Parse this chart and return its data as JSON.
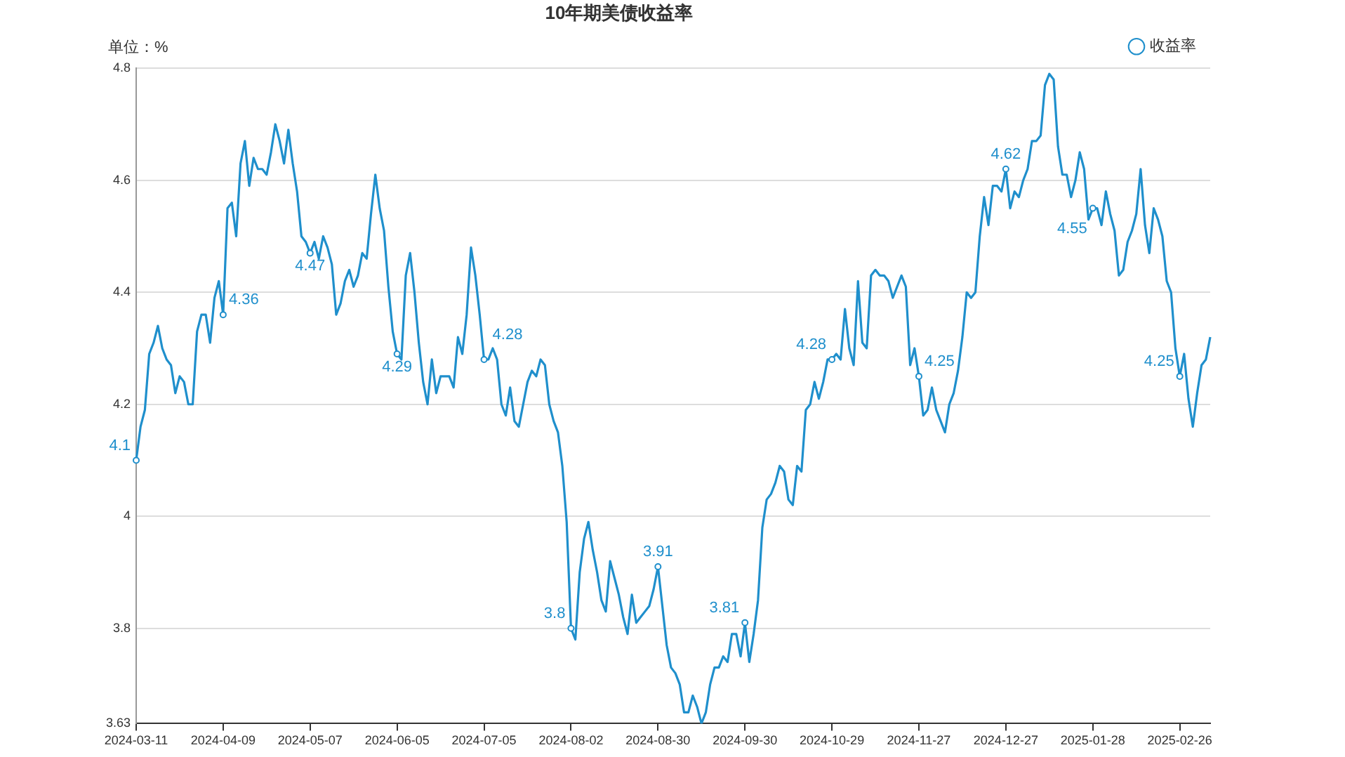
{
  "chart_data": {
    "type": "line",
    "title": "10年期美债收益率",
    "ylabel": "单位：%",
    "categories": [
      "2024-03-11",
      null,
      null,
      null,
      null,
      null,
      null,
      null,
      null,
      null,
      null,
      null,
      null,
      null,
      null,
      null,
      null,
      null,
      null,
      null,
      "2024-04-09",
      null,
      null,
      null,
      null,
      null,
      null,
      null,
      null,
      null,
      null,
      null,
      null,
      null,
      null,
      null,
      null,
      null,
      null,
      null,
      "2024-05-07",
      null,
      null,
      null,
      null,
      null,
      null,
      null,
      null,
      null,
      null,
      null,
      null,
      null,
      null,
      null,
      null,
      null,
      null,
      null,
      "2024-06-05",
      null,
      null,
      null,
      null,
      null,
      null,
      null,
      null,
      null,
      null,
      null,
      null,
      null,
      null,
      null,
      null,
      null,
      null,
      null,
      "2024-07-05",
      null,
      null,
      null,
      null,
      null,
      null,
      null,
      null,
      null,
      null,
      null,
      null,
      null,
      null,
      null,
      null,
      null,
      null,
      null,
      "2024-08-02",
      null,
      null,
      null,
      null,
      null,
      null,
      null,
      null,
      null,
      null,
      null,
      null,
      null,
      null,
      null,
      null,
      null,
      null,
      null,
      "2024-08-30",
      null,
      null,
      null,
      null,
      null,
      null,
      null,
      null,
      null,
      null,
      null,
      null,
      null,
      null,
      null,
      null,
      null,
      null,
      null,
      "2024-09-30",
      null,
      null,
      null,
      null,
      null,
      null,
      null,
      null,
      null,
      null,
      null,
      null,
      null,
      null,
      null,
      null,
      null,
      null,
      null,
      "2024-10-29",
      null,
      null,
      null,
      null,
      null,
      null,
      null,
      null,
      null,
      null,
      null,
      null,
      null,
      null,
      null,
      null,
      null,
      null,
      null,
      "2024-11-27",
      null,
      null,
      null,
      null,
      null,
      null,
      null,
      null,
      null,
      null,
      null,
      null,
      null,
      null,
      null,
      null,
      null,
      null,
      null,
      "2024-12-27",
      null,
      null,
      null,
      null,
      null,
      null,
      null,
      null,
      null,
      null,
      null,
      null,
      null,
      null,
      null,
      null,
      null,
      null,
      null,
      "2025-01-28",
      null,
      null,
      null,
      null,
      null,
      null,
      null,
      null,
      null,
      null,
      null,
      null,
      null,
      null,
      null,
      null,
      null,
      null,
      null,
      "2025-02-26",
      null,
      null,
      null,
      null,
      null,
      null,
      null
    ],
    "series": [
      {
        "name": "收益率",
        "color": "#1f8fcc",
        "values": [
          4.1,
          4.16,
          4.19,
          4.29,
          4.31,
          4.34,
          4.3,
          4.28,
          4.27,
          4.22,
          4.25,
          4.24,
          4.2,
          4.2,
          4.33,
          4.36,
          4.36,
          4.31,
          4.39,
          4.42,
          4.36,
          4.55,
          4.56,
          4.5,
          4.63,
          4.67,
          4.59,
          4.64,
          4.62,
          4.62,
          4.61,
          4.65,
          4.7,
          4.67,
          4.63,
          4.69,
          4.63,
          4.58,
          4.5,
          4.49,
          4.47,
          4.49,
          4.46,
          4.5,
          4.48,
          4.45,
          4.36,
          4.38,
          4.42,
          4.44,
          4.41,
          4.43,
          4.47,
          4.46,
          4.54,
          4.61,
          4.55,
          4.51,
          4.41,
          4.33,
          4.29,
          4.28,
          4.43,
          4.47,
          4.4,
          4.31,
          4.24,
          4.2,
          4.28,
          4.22,
          4.25,
          4.25,
          4.25,
          4.23,
          4.32,
          4.29,
          4.36,
          4.48,
          4.43,
          4.36,
          4.28,
          4.28,
          4.3,
          4.28,
          4.2,
          4.18,
          4.23,
          4.17,
          4.16,
          4.2,
          4.24,
          4.26,
          4.25,
          4.28,
          4.27,
          4.2,
          4.17,
          4.15,
          4.09,
          3.99,
          3.8,
          3.78,
          3.9,
          3.96,
          3.99,
          3.94,
          3.9,
          3.85,
          3.83,
          3.92,
          3.89,
          3.86,
          3.82,
          3.79,
          3.86,
          3.81,
          3.82,
          3.83,
          3.84,
          3.87,
          3.91,
          3.84,
          3.77,
          3.73,
          3.72,
          3.7,
          3.65,
          3.65,
          3.68,
          3.66,
          3.63,
          3.65,
          3.7,
          3.73,
          3.73,
          3.75,
          3.74,
          3.79,
          3.79,
          3.75,
          3.81,
          3.74,
          3.79,
          3.85,
          3.98,
          4.03,
          4.04,
          4.06,
          4.09,
          4.08,
          4.03,
          4.02,
          4.09,
          4.08,
          4.19,
          4.2,
          4.24,
          4.21,
          4.24,
          4.28,
          4.28,
          4.29,
          4.28,
          4.37,
          4.3,
          4.27,
          4.42,
          4.31,
          4.3,
          4.43,
          4.44,
          4.43,
          4.43,
          4.42,
          4.39,
          4.41,
          4.43,
          4.41,
          4.27,
          4.3,
          4.25,
          4.18,
          4.19,
          4.23,
          4.19,
          4.17,
          4.15,
          4.2,
          4.22,
          4.26,
          4.32,
          4.4,
          4.39,
          4.4,
          4.5,
          4.57,
          4.52,
          4.59,
          4.59,
          4.58,
          4.62,
          4.55,
          4.58,
          4.57,
          4.6,
          4.62,
          4.67,
          4.67,
          4.68,
          4.77,
          4.79,
          4.78,
          4.66,
          4.61,
          4.61,
          4.57,
          4.6,
          4.65,
          4.62,
          4.53,
          4.55,
          4.55,
          4.52,
          4.58,
          4.54,
          4.51,
          4.43,
          4.44,
          4.49,
          4.51,
          4.54,
          4.62,
          4.52,
          4.47,
          4.55,
          4.53,
          4.5,
          4.42,
          4.4,
          4.3,
          4.25,
          4.29,
          4.21,
          4.16,
          4.22,
          4.27,
          4.28,
          4.32
        ],
        "value_labels": [
          "4.1",
          null,
          null,
          null,
          null,
          null,
          null,
          null,
          null,
          null,
          null,
          null,
          null,
          null,
          null,
          null,
          null,
          null,
          null,
          null,
          "4.36",
          null,
          null,
          null,
          null,
          null,
          null,
          null,
          null,
          null,
          null,
          null,
          null,
          null,
          null,
          null,
          null,
          null,
          null,
          null,
          "4.47",
          null,
          null,
          null,
          null,
          null,
          null,
          null,
          null,
          null,
          null,
          null,
          null,
          null,
          null,
          null,
          null,
          null,
          null,
          null,
          "4.29",
          null,
          null,
          null,
          null,
          null,
          null,
          null,
          null,
          null,
          null,
          null,
          null,
          null,
          null,
          null,
          null,
          null,
          null,
          null,
          "4.28",
          null,
          null,
          null,
          null,
          null,
          null,
          null,
          null,
          null,
          null,
          null,
          null,
          null,
          null,
          null,
          null,
          null,
          null,
          null,
          "3.8",
          null,
          null,
          null,
          null,
          null,
          null,
          null,
          null,
          null,
          null,
          null,
          null,
          null,
          null,
          null,
          null,
          null,
          null,
          null,
          "3.91",
          null,
          null,
          null,
          null,
          null,
          null,
          null,
          null,
          null,
          null,
          null,
          null,
          null,
          null,
          null,
          null,
          null,
          null,
          null,
          "3.81",
          null,
          null,
          null,
          null,
          null,
          null,
          null,
          null,
          null,
          null,
          null,
          null,
          null,
          null,
          null,
          null,
          null,
          null,
          null,
          "4.28",
          null,
          null,
          null,
          null,
          null,
          null,
          null,
          null,
          null,
          null,
          null,
          null,
          null,
          null,
          null,
          null,
          null,
          null,
          null,
          "4.25",
          null,
          null,
          null,
          null,
          null,
          null,
          null,
          null,
          null,
          null,
          null,
          null,
          null,
          null,
          null,
          null,
          null,
          null,
          null,
          "4.62",
          null,
          null,
          null,
          null,
          null,
          null,
          null,
          null,
          null,
          null,
          null,
          null,
          null,
          null,
          null,
          null,
          null,
          null,
          null,
          "4.55",
          null,
          null,
          null,
          null,
          null,
          null,
          null,
          null,
          null,
          null,
          null,
          null,
          null,
          null,
          null,
          null,
          null,
          null,
          null,
          "4.25",
          null,
          null,
          null,
          null,
          null,
          null,
          null
        ]
      }
    ],
    "ylim": [
      3.63,
      4.8
    ],
    "yticks": [
      3.63,
      3.8,
      4,
      4.2,
      4.4,
      4.6,
      4.8
    ],
    "grid": "y",
    "legend": "top right",
    "line_style": "solid"
  }
}
